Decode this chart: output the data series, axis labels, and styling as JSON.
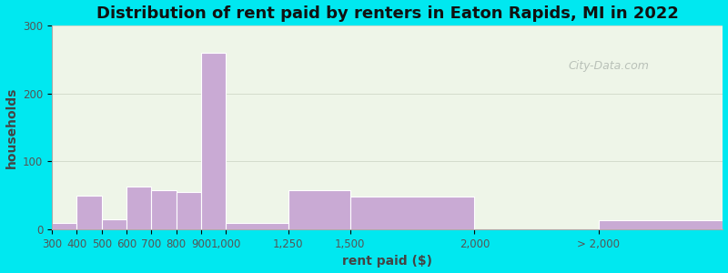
{
  "title": "Distribution of rent paid by renters in Eaton Rapids, MI in 2022",
  "xlabel": "rent paid ($)",
  "ylabel": "households",
  "bar_color": "#c9aad4",
  "bar_edge_color": "#ffffff",
  "background_outer": "#00e8f0",
  "background_inner": "#eef5e8",
  "ylim": [
    0,
    300
  ],
  "yticks": [
    0,
    100,
    200,
    300
  ],
  "bin_edges": [
    300,
    400,
    500,
    600,
    700,
    800,
    900,
    1000,
    1250,
    1500,
    2000,
    2500,
    3000
  ],
  "values": [
    10,
    50,
    15,
    63,
    58,
    55,
    260,
    10,
    58,
    48,
    0,
    13
  ],
  "tick_positions": [
    300,
    400,
    500,
    600,
    700,
    800,
    900,
    1000,
    1250,
    1500,
    2000,
    2500
  ],
  "tick_labels": [
    "300",
    "400",
    "500",
    "600",
    "700",
    "800",
    "9001,000",
    "1,250",
    "1,500",
    "2,000",
    "> 2,000",
    ""
  ],
  "title_fontsize": 13,
  "axis_label_fontsize": 10,
  "tick_fontsize": 8.5,
  "watermark_text": "City-Data.com",
  "watermark_color": "#b0b8b0",
  "grid_color": "#d0d8c8",
  "spine_color": "#aaaaaa"
}
